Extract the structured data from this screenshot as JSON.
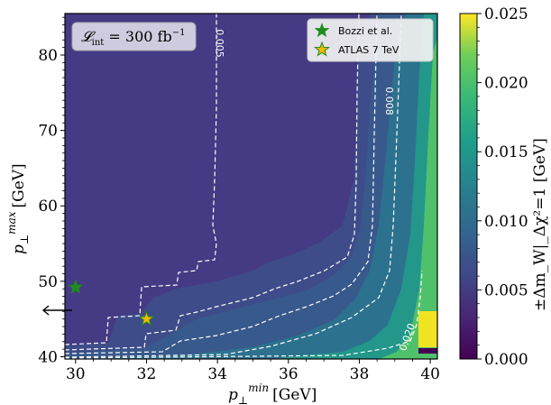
{
  "chart_data": {
    "type": "heatmap",
    "xlabel": "p⊥min [GeV]",
    "xlabel_main": "p",
    "xlabel_sub": "⊥",
    "xlabel_sup": "min",
    "xlabel_unit": "[GeV]",
    "ylabel": "p⊥max [GeV]",
    "ylabel_main": "p",
    "ylabel_sub": "⊥",
    "ylabel_sup": "max",
    "ylabel_unit": "[GeV]",
    "xlim": [
      29.7,
      40.2
    ],
    "ylim": [
      39.7,
      85.5
    ],
    "x_ticks": [
      "30",
      "32",
      "34",
      "36",
      "38",
      "40"
    ],
    "y_ticks": [
      "40",
      "50",
      "60",
      "70",
      "80"
    ],
    "colorbar": {
      "label": "±Δm_W|_Δχ²=1 [GeV]",
      "range": [
        0.0,
        0.025
      ],
      "ticks": [
        "0.000",
        "0.005",
        "0.010",
        "0.015",
        "0.020",
        "0.025"
      ],
      "colormap": "viridis"
    },
    "contours": [
      {
        "label": "0.005",
        "value": 0.005
      },
      {
        "label": "0.008",
        "value": 0.008
      },
      {
        "label": "0.020",
        "value": 0.02
      }
    ],
    "annotation": "𝓛int = 300 fb⁻¹",
    "annotation_main": "𝓛",
    "annotation_sub": "int",
    "annotation_rest": " = 300 fb",
    "annotation_sup": "−1",
    "markers": [
      {
        "name": "Bozzi et al.",
        "x": 30.0,
        "y": 49.2,
        "color": "#1e8c1e"
      },
      {
        "name": "ATLAS 7 TeV",
        "x": 32.0,
        "y": 45.0,
        "color": "#f5b800"
      }
    ],
    "legend_position": "top-right"
  },
  "colors": {
    "background": "#3e4a89",
    "mid": "#31688e",
    "green": "#35b779",
    "yellow": "#fde725"
  }
}
